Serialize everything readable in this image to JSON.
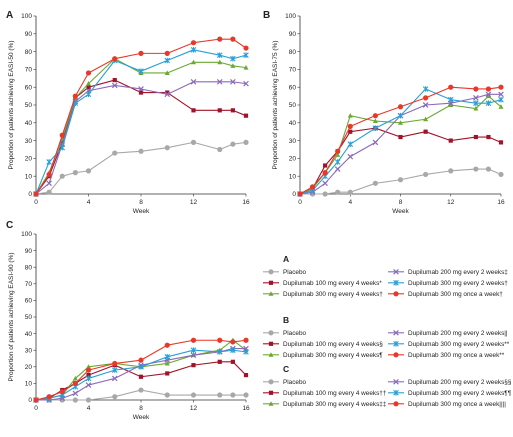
{
  "chart_data": [
    {
      "type": "line",
      "panel_label": "A",
      "ylabel": "Proportion of patients achieving EASI-50 (%)",
      "xlabel": "Week",
      "xlim": [
        0,
        16
      ],
      "ylim": [
        0,
        100
      ],
      "xticks": [
        "0",
        "4",
        "8",
        "12",
        "16"
      ],
      "yticks": [
        "0",
        "10",
        "20",
        "30",
        "40",
        "50",
        "60",
        "70",
        "80",
        "90",
        "100"
      ],
      "x": [
        0,
        1,
        2,
        3,
        4,
        6,
        8,
        10,
        12,
        14,
        15,
        16
      ],
      "series": [
        {
          "name": "Placebo",
          "color": "#a8a8a8",
          "marker": "circle",
          "values": [
            0,
            1,
            10,
            12,
            13,
            23,
            24,
            26,
            29,
            25,
            28,
            29
          ]
        },
        {
          "name": "Dupilumab 100 mg every 4 weeks*",
          "color": "#a0142a",
          "marker": "square",
          "values": [
            0,
            10,
            29,
            54,
            60,
            64,
            57,
            57,
            47,
            47,
            47,
            44
          ]
        },
        {
          "name": "Dupilumab 300 mg every 4 weeks†",
          "color": "#6aaa32",
          "marker": "triangle",
          "values": [
            0,
            12,
            31,
            54,
            62,
            76,
            68,
            68,
            74,
            74,
            72,
            71
          ]
        },
        {
          "name": "Dupilumab 200 mg every 2 weeks‡",
          "color": "#8a6ab8",
          "marker": "x",
          "values": [
            0,
            6,
            28,
            52,
            58,
            61,
            59,
            56,
            63,
            63,
            63,
            62
          ]
        },
        {
          "name": "Dupilumab 300 mg every 2 weeks†",
          "color": "#2a9fd6",
          "marker": "star",
          "values": [
            0,
            18,
            26,
            51,
            56,
            75,
            69,
            75,
            81,
            78,
            76,
            78
          ]
        },
        {
          "name": "Dupilumab 300 mg once a week†",
          "color": "#e8382a",
          "marker": "circle",
          "values": [
            0,
            11,
            33,
            55,
            68,
            76,
            79,
            79,
            85,
            87,
            87,
            82
          ]
        }
      ]
    },
    {
      "type": "line",
      "panel_label": "B",
      "ylabel": "Proportion of patients achieving EASI-75 (%)",
      "xlabel": "Week",
      "xlim": [
        0,
        16
      ],
      "ylim": [
        0,
        100
      ],
      "xticks": [
        "0",
        "4",
        "8",
        "12",
        "16"
      ],
      "yticks": [
        "0",
        "10",
        "20",
        "30",
        "40",
        "50",
        "60",
        "70",
        "80",
        "90",
        "100"
      ],
      "x": [
        0,
        1,
        2,
        3,
        4,
        6,
        8,
        10,
        12,
        14,
        15,
        16
      ],
      "series": [
        {
          "name": "Placebo",
          "color": "#a8a8a8",
          "marker": "circle",
          "values": [
            0,
            0,
            0,
            1,
            1,
            6,
            8,
            11,
            13,
            14,
            14,
            11
          ]
        },
        {
          "name": "Dupilumab 100 mg every 4 weeks§",
          "color": "#a0142a",
          "marker": "square",
          "values": [
            0,
            3,
            16,
            24,
            35,
            37,
            32,
            35,
            30,
            32,
            32,
            29
          ]
        },
        {
          "name": "Dupilumab 300 mg every 4 weeks¶",
          "color": "#6aaa32",
          "marker": "triangle",
          "values": [
            0,
            3,
            12,
            22,
            44,
            41,
            40,
            42,
            50,
            48,
            55,
            49
          ]
        },
        {
          "name": "Dupilumab 200 mg every 2 weeks||",
          "color": "#8a6ab8",
          "marker": "x",
          "values": [
            0,
            1,
            6,
            14,
            21,
            29,
            44,
            50,
            51,
            54,
            56,
            56
          ]
        },
        {
          "name": "Dupilumab 300 mg every 2 weeks**",
          "color": "#2a9fd6",
          "marker": "star",
          "values": [
            0,
            2,
            10,
            18,
            28,
            37,
            44,
            59,
            53,
            51,
            51,
            53
          ]
        },
        {
          "name": "Dupilumab 300 mg once a week**",
          "color": "#e8382a",
          "marker": "circle",
          "values": [
            0,
            4,
            12,
            24,
            38,
            44,
            49,
            54,
            60,
            59,
            59,
            60
          ]
        }
      ]
    },
    {
      "type": "line",
      "panel_label": "C",
      "ylabel": "Proportion of patients achieving EASI-90 (%)",
      "xlabel": "Week",
      "xlim": [
        0,
        16
      ],
      "ylim": [
        0,
        100
      ],
      "xticks": [
        "0",
        "4",
        "8",
        "12",
        "16"
      ],
      "yticks": [
        "0",
        "10",
        "20",
        "30",
        "40",
        "50",
        "60",
        "70",
        "80",
        "90",
        "100"
      ],
      "x": [
        0,
        1,
        2,
        3,
        4,
        6,
        8,
        10,
        12,
        14,
        15,
        16
      ],
      "series": [
        {
          "name": "Placebo",
          "color": "#a8a8a8",
          "marker": "circle",
          "values": [
            0,
            0,
            0,
            0,
            0,
            2,
            6,
            3,
            3,
            3,
            3,
            3
          ]
        },
        {
          "name": "Dupilumab 100 mg every 4 weeks††",
          "color": "#a0142a",
          "marker": "square",
          "values": [
            0,
            1,
            6,
            10,
            15,
            21,
            14,
            16,
            21,
            23,
            23,
            15
          ]
        },
        {
          "name": "Dupilumab 300 mg every 4 weeks‡‡",
          "color": "#6aaa32",
          "marker": "triangle",
          "values": [
            0,
            1,
            3,
            13,
            20,
            22,
            20,
            22,
            27,
            30,
            36,
            30
          ]
        },
        {
          "name": "Dupilumab 200 mg every 2 weeks§§",
          "color": "#8a6ab8",
          "marker": "x",
          "values": [
            0,
            0,
            1,
            4,
            9,
            13,
            21,
            24,
            27,
            29,
            31,
            31
          ]
        },
        {
          "name": "Dupilumab 300 mg every 2 weeks¶¶",
          "color": "#2a9fd6",
          "marker": "star",
          "values": [
            0,
            1,
            3,
            8,
            13,
            18,
            20,
            26,
            30,
            29,
            30,
            29
          ]
        },
        {
          "name": "Dupilumab 300 mg once a week||||",
          "color": "#e8382a",
          "marker": "circle",
          "values": [
            0,
            2,
            5,
            10,
            18,
            22,
            24,
            33,
            36,
            36,
            35,
            36
          ]
        }
      ]
    }
  ],
  "legend": {
    "groups": [
      {
        "letter": "A",
        "left": [
          "Placebo",
          "Dupilumab 100 mg every 4 weeks*",
          "Dupilumab 300 mg every 4 weeks†"
        ],
        "right": [
          "Dupilumab 200 mg every 2 weeks‡",
          "Dupilumab 300 mg every 2 weeks†",
          "Dupilumab 300 mg once a week†"
        ]
      },
      {
        "letter": "B",
        "left": [
          "Placebo",
          "Dupilumab 100 mg every 4 weeks§",
          "Dupilumab 300 mg every 4 weeks¶"
        ],
        "right": [
          "Dupilumab 200 mg every 2 weeks||",
          "Dupilumab 300 mg every 2 weeks**",
          "Dupilumab 300 mg once a week**"
        ]
      },
      {
        "letter": "C",
        "left": [
          "Placebo",
          "Dupilumab 100 mg every 4 weeks††",
          "Dupilumab 300 mg every 4 weeks‡‡"
        ],
        "right": [
          "Dupilumab 200 mg every 2 weeks§§",
          "Dupilumab 300 mg every 2 weeks¶¶",
          "Dupilumab 300 mg once a week||||"
        ]
      }
    ],
    "left_colors": [
      "#a8a8a8",
      "#a0142a",
      "#6aaa32"
    ],
    "left_markers": [
      "circle",
      "square",
      "triangle"
    ],
    "right_colors": [
      "#8a6ab8",
      "#2a9fd6",
      "#e8382a"
    ],
    "right_markers": [
      "x",
      "star",
      "circle"
    ]
  }
}
